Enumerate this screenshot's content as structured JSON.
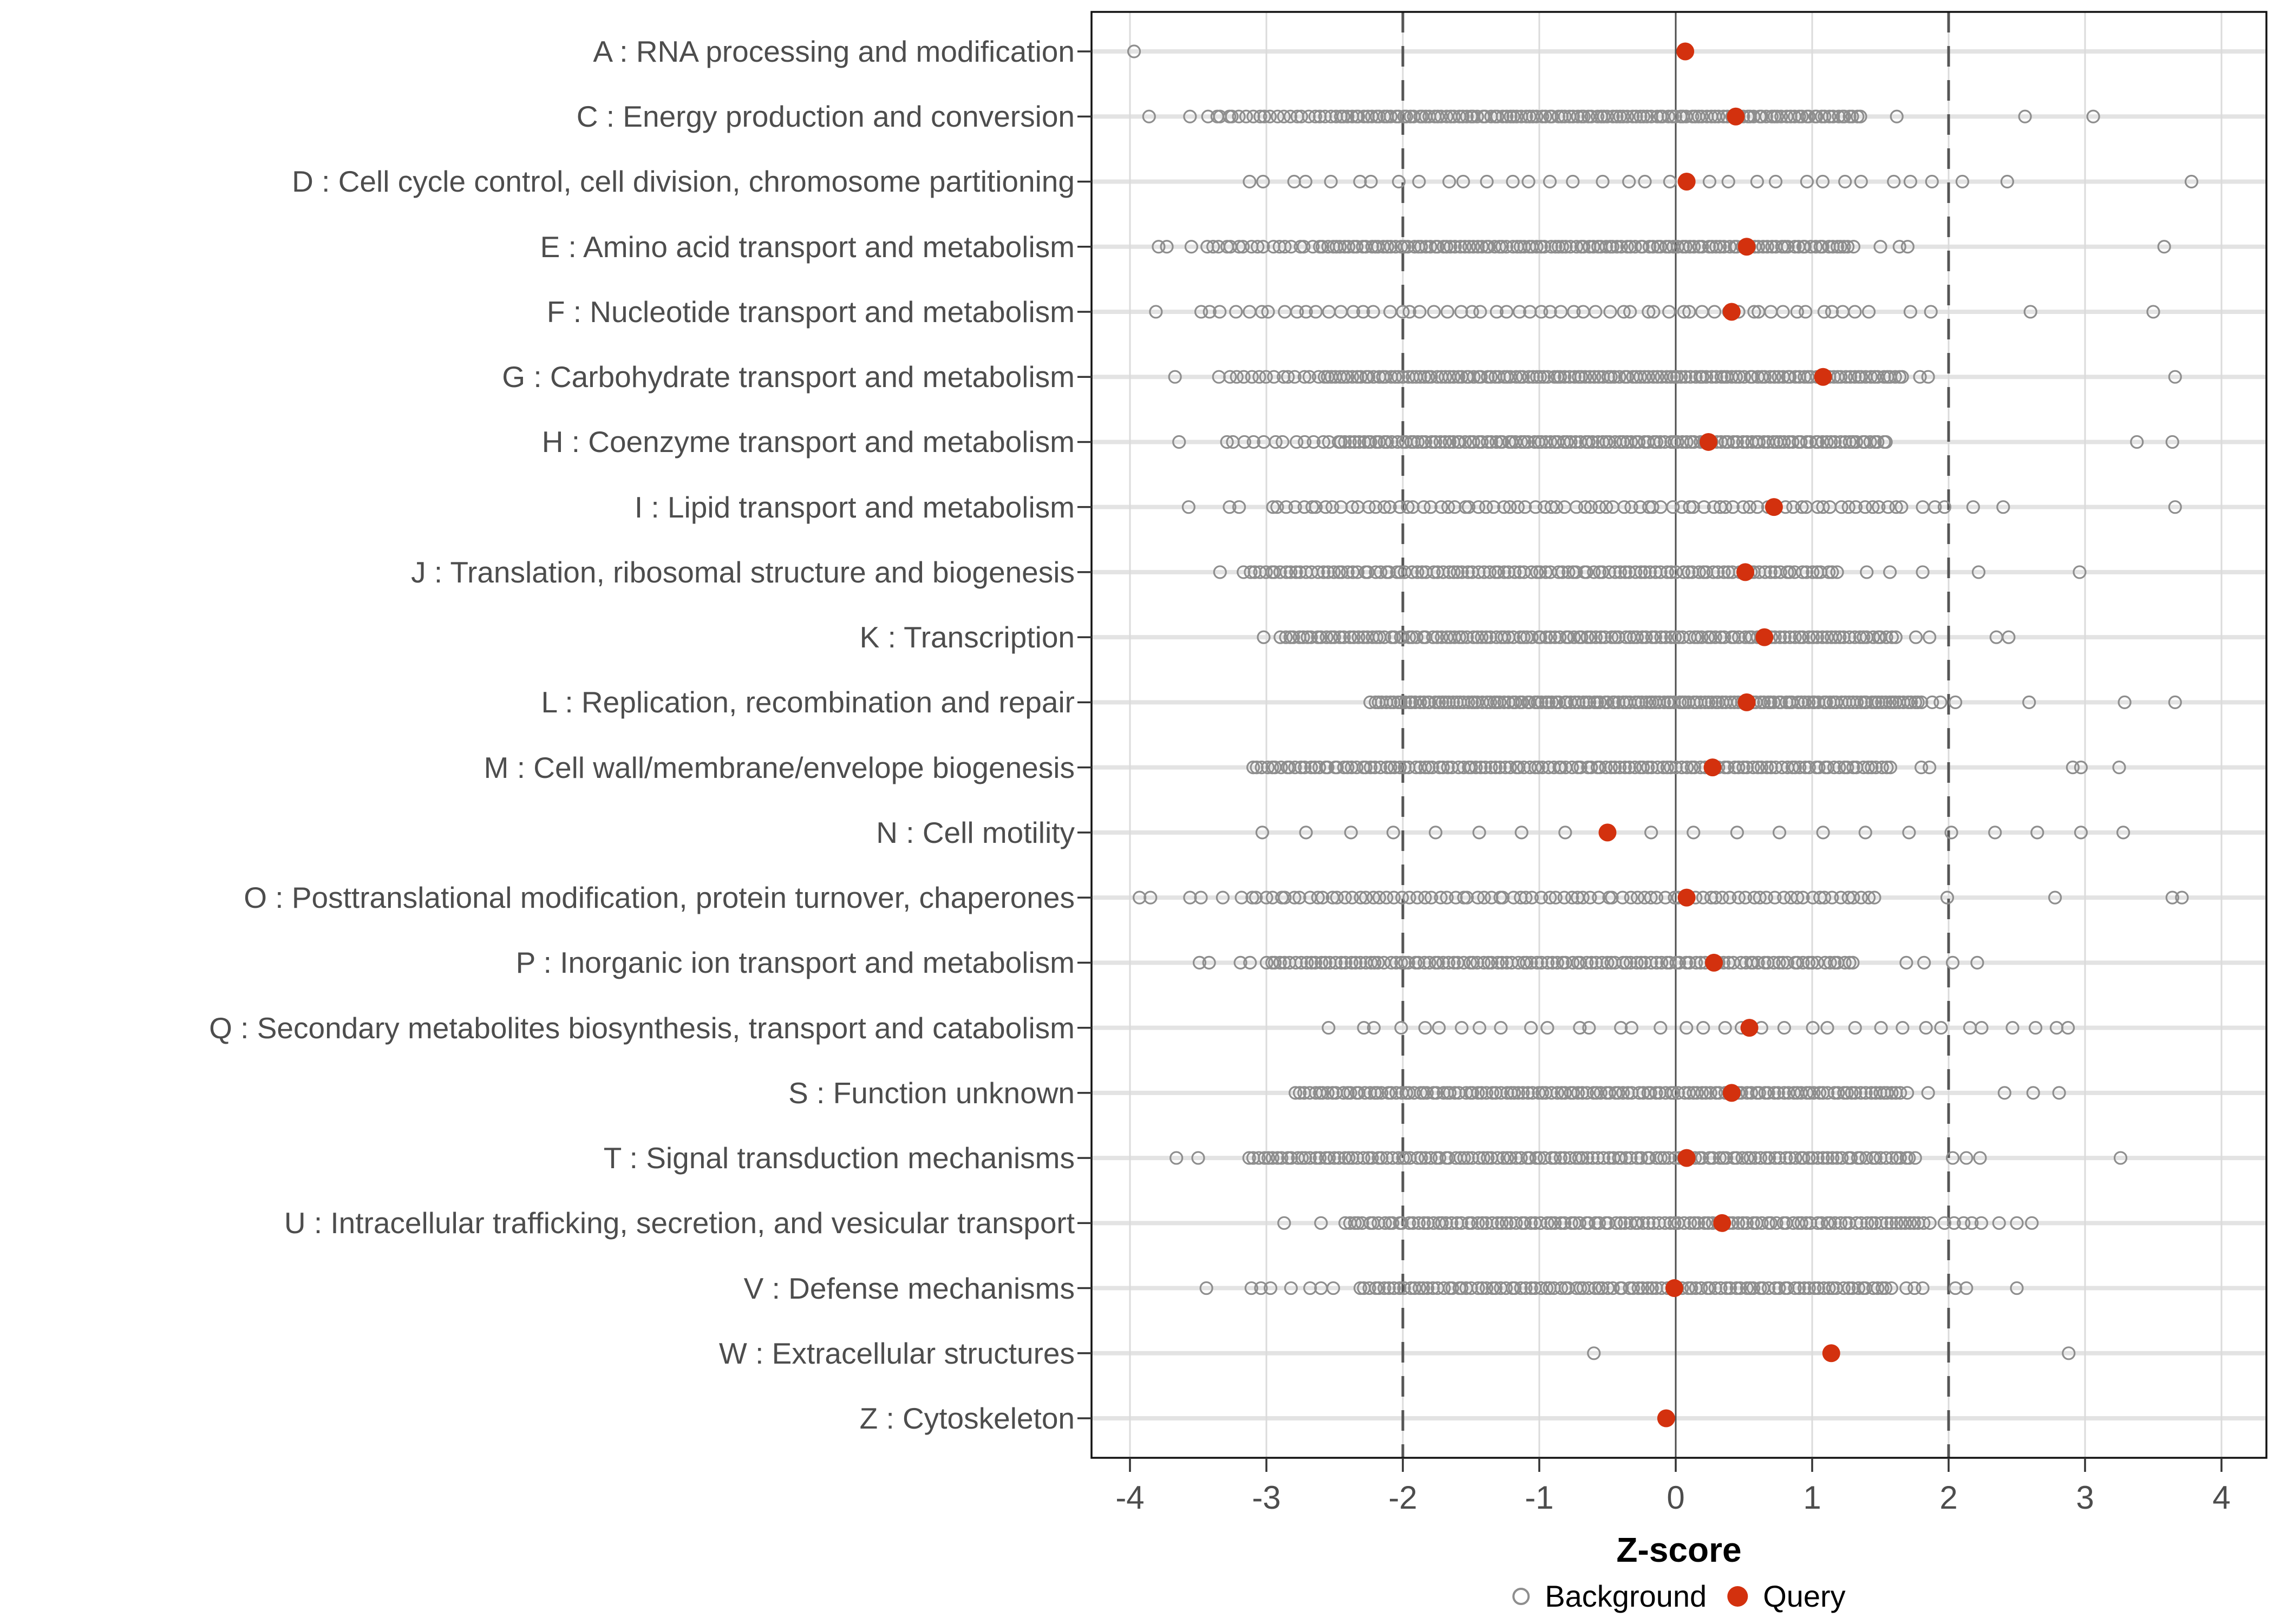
{
  "chart_data": {
    "type": "scatter",
    "variant": "horizontal-strip-dot-plot",
    "title": "",
    "xlabel": "Z-score",
    "x_ticks": [
      -4,
      -3,
      -2,
      -1,
      0,
      1,
      2,
      3,
      4
    ],
    "xlim": [
      -4.28,
      4.33
    ],
    "grid": "major-only",
    "reference_lines": {
      "solid": [
        0
      ],
      "dashed": [
        -2,
        2
      ]
    },
    "legend_position": "bottom-center",
    "legend": [
      {
        "label": "Background",
        "marker": "open-circle",
        "color": "#8E8E8E"
      },
      {
        "label": "Query",
        "marker": "filled-circle",
        "color": "#D3310E"
      }
    ],
    "colors": {
      "background_stroke": "#8E8E8E",
      "query_fill": "#D3310E",
      "grid_major": "#DBDBDB",
      "row_line": "#E3E3E3",
      "zero_line": "#4D4D4D",
      "dashed_line": "#555555",
      "axis_text": "#4D4D4D",
      "panel_border": "#111111",
      "tick_mark": "#333333"
    },
    "categories": [
      {
        "code": "A",
        "label": "A : RNA processing and modification",
        "query": 0.07,
        "background": {
          "segments": [],
          "points": [
            -3.97
          ]
        }
      },
      {
        "code": "C",
        "label": "C : Energy production and conversion",
        "query": 0.44,
        "background": {
          "segments": [
            [
              -3.42,
              -2.56,
              20
            ],
            [
              -2.52,
              1.36,
              135
            ]
          ],
          "points": [
            -3.86,
            -3.56,
            1.62,
            2.56,
            3.06
          ]
        }
      },
      {
        "code": "D",
        "label": "D : Cell cycle control, cell division, chromosome partitioning",
        "query": 0.08,
        "background": {
          "segments": [
            [
              -3.17,
              2.05,
              33
            ]
          ],
          "points": [
            2.43,
            3.78
          ]
        }
      },
      {
        "code": "E",
        "label": "E : Amino acid transport and metabolism",
        "query": 0.52,
        "background": {
          "segments": [
            [
              -3.45,
              -2.62,
              18
            ],
            [
              -2.58,
              1.3,
              125
            ]
          ],
          "points": [
            -3.79,
            -3.73,
            -3.55,
            1.5,
            1.64,
            1.7,
            3.58
          ]
        }
      },
      {
        "code": "F",
        "label": "F : Nucleotide transport and metabolism",
        "query": 0.41,
        "background": {
          "segments": [
            [
              -3.49,
              1.41,
              58
            ]
          ],
          "points": [
            -3.81,
            1.72,
            1.87,
            2.6,
            3.5
          ]
        }
      },
      {
        "code": "G",
        "label": "G : Carbohydrate transport and metabolism",
        "query": 1.08,
        "background": {
          "segments": [
            [
              -3.33,
              -2.62,
              14
            ],
            [
              -2.58,
              1.67,
              140
            ]
          ],
          "points": [
            -3.67,
            1.79,
            1.85,
            3.66
          ]
        }
      },
      {
        "code": "H",
        "label": "H : Coenzyme transport and metabolism",
        "query": 0.24,
        "background": {
          "segments": [
            [
              -3.3,
              -2.52,
              12
            ],
            [
              -2.48,
              1.55,
              130
            ]
          ],
          "points": [
            -3.64,
            3.38,
            3.64
          ]
        }
      },
      {
        "code": "I",
        "label": "I : Lipid transport and metabolism",
        "query": 0.72,
        "background": {
          "segments": [
            [
              -2.97,
              1.67,
              80
            ]
          ],
          "points": [
            -3.57,
            -3.27,
            -3.2,
            1.81,
            1.9,
            1.97,
            2.18,
            2.4,
            3.66
          ]
        }
      },
      {
        "code": "J",
        "label": "J : Translation, ribosomal structure and biogenesis",
        "query": 0.51,
        "background": {
          "segments": [
            [
              -3.16,
              1.19,
              115
            ]
          ],
          "points": [
            -3.34,
            1.4,
            1.57,
            1.81,
            2.22,
            2.96
          ]
        }
      },
      {
        "code": "K",
        "label": "K : Transcription",
        "query": 0.65,
        "background": {
          "segments": [
            [
              -2.9,
              1.61,
              135
            ]
          ],
          "points": [
            -3.02,
            1.76,
            1.86,
            2.35,
            2.44
          ]
        }
      },
      {
        "code": "L",
        "label": "L : Replication, recombination and repair",
        "query": 0.52,
        "background": {
          "segments": [
            [
              -2.23,
              1.81,
              150
            ]
          ],
          "points": [
            1.88,
            1.94,
            2.05,
            2.59,
            3.29,
            3.66
          ]
        }
      },
      {
        "code": "M",
        "label": "M : Cell wall/membrane/envelope biogenesis",
        "query": 0.27,
        "background": {
          "segments": [
            [
              -3.1,
              1.58,
              135
            ]
          ],
          "points": [
            1.8,
            1.86,
            2.91,
            2.97,
            3.25
          ]
        }
      },
      {
        "code": "N",
        "label": "N : Cell motility",
        "query": -0.5,
        "background": {
          "segments": [],
          "points": [
            -3.03,
            -2.71,
            -2.38,
            -2.07,
            -1.76,
            -1.44,
            -1.13,
            -0.81,
            -0.18,
            0.13,
            0.45,
            0.76,
            1.08,
            1.39,
            1.71,
            2.02,
            2.34,
            2.65,
            2.97,
            3.28
          ]
        }
      },
      {
        "code": "O",
        "label": "O : Posttranslational modification, protein turnover, chaperones",
        "query": 0.08,
        "background": {
          "segments": [
            [
              -3.17,
              1.47,
              88
            ]
          ],
          "points": [
            -3.93,
            -3.85,
            -3.56,
            -3.48,
            -3.32,
            1.99,
            2.78,
            3.64,
            3.71
          ]
        }
      },
      {
        "code": "P",
        "label": "P : Inorganic ion transport and metabolism",
        "query": 0.28,
        "background": {
          "segments": [
            [
              -3.0,
              1.3,
              120
            ]
          ],
          "points": [
            -3.49,
            -3.42,
            -3.19,
            -3.12,
            1.69,
            1.82,
            2.03,
            2.21
          ]
        }
      },
      {
        "code": "Q",
        "label": "Q : Secondary metabolites biosynthesis, transport and catabolism",
        "query": 0.54,
        "background": {
          "segments": [
            [
              -2.5,
              2.91,
              35
            ]
          ],
          "points": []
        }
      },
      {
        "code": "S",
        "label": "S : Function unknown",
        "query": 0.41,
        "background": {
          "segments": [
            [
              -2.78,
              1.69,
              135
            ]
          ],
          "points": [
            1.85,
            2.41,
            2.62,
            2.81
          ]
        }
      },
      {
        "code": "T",
        "label": "T : Signal transduction mechanisms",
        "query": 0.08,
        "background": {
          "segments": [
            [
              -3.13,
              1.75,
              140
            ]
          ],
          "points": [
            -3.66,
            -3.5,
            2.03,
            2.13,
            2.23,
            3.26
          ]
        }
      },
      {
        "code": "U",
        "label": "U : Intracellular trafficking, secretion, and vesicular transport",
        "query": 0.34,
        "background": {
          "segments": [
            [
              -2.43,
              1.86,
              120
            ]
          ],
          "points": [
            -2.87,
            -2.6,
            1.97,
            2.04,
            2.11,
            2.17,
            2.24,
            2.37,
            2.5,
            2.61
          ]
        }
      },
      {
        "code": "V",
        "label": "V : Defense mechanisms",
        "query": -0.01,
        "background": {
          "segments": [
            [
              -2.31,
              1.58,
              110
            ]
          ],
          "points": [
            -3.44,
            -3.11,
            -3.04,
            -2.97,
            -2.82,
            -2.68,
            -2.6,
            -2.51,
            1.69,
            1.75,
            1.81,
            2.05,
            2.13,
            2.5
          ]
        }
      },
      {
        "code": "W",
        "label": "W : Extracellular structures",
        "query": 1.14,
        "background": {
          "segments": [],
          "points": [
            -0.6,
            2.88
          ]
        }
      },
      {
        "code": "Z",
        "label": "Z : Cytoskeleton",
        "query": -0.07,
        "background": {
          "segments": [],
          "points": []
        }
      }
    ]
  }
}
